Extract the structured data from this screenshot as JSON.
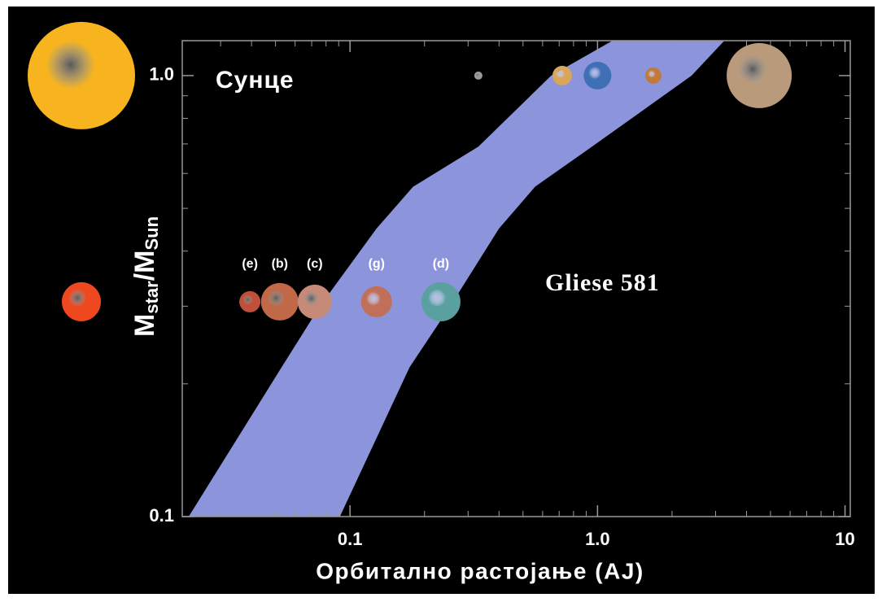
{
  "chart_data": {
    "type": "scatter",
    "xlabel": "Орбитално растојање (AJ)",
    "ylabel": [
      "M",
      "star",
      "/M",
      "Sun"
    ],
    "xscale": "log",
    "yscale": "log",
    "xlim": [
      0.021,
      10.5
    ],
    "ylim": [
      0.1,
      1.2
    ],
    "xticks": [
      0.1,
      {
        "value": 1,
        "label": "1.0"
      },
      10
    ],
    "yticks": [
      0.1,
      {
        "value": 1,
        "label": "1.0"
      }
    ],
    "xminorticks": [
      0.03,
      0.04,
      0.05,
      0.06,
      0.07,
      0.08,
      0.09,
      0.2,
      0.3,
      0.4,
      0.5,
      0.6,
      0.7,
      0.8,
      0.9,
      2,
      3,
      4,
      5,
      6,
      7,
      8,
      9
    ],
    "yminorticks": [
      0.2,
      0.3,
      0.4,
      0.5,
      0.6,
      0.7,
      0.8,
      0.9
    ],
    "habitable_zone": {
      "color": "#8c94dc",
      "mass": [
        0.1,
        0.218,
        0.3,
        0.45,
        0.56,
        0.69,
        1.0,
        1.21
      ],
      "inner": [
        0.0223,
        0.0529,
        0.0756,
        0.128,
        0.18,
        0.33,
        0.65,
        1.18
      ],
      "outer": [
        0.091,
        0.174,
        0.254,
        0.4,
        0.56,
        0.95,
        2.4,
        3.3
      ]
    },
    "systems": [
      {
        "name": "Сунце",
        "star_mass": 1,
        "star_color": "#f7b41e",
        "planets": {
          "x": [
            0.33,
            0.72,
            1.0,
            1.68,
            4.5
          ],
          "colors": [
            "#9a9a9a",
            "#d9a65a",
            "#3f6fb5",
            "#c07a3a",
            "#b99a7a"
          ]
        }
      },
      {
        "name": "Gliese 581",
        "star_mass": 0.307,
        "star_color": "#f0481e",
        "planets": {
          "x": [
            0.0394,
            0.052,
            0.072,
            0.128,
            0.233
          ],
          "labels": [
            "(e)",
            "(b)",
            "(c)",
            "(g)",
            "(d)"
          ],
          "colors": [
            "#c0503a",
            "#c06848",
            "#c58a78",
            "#c07058",
            "#5aa0a0"
          ]
        }
      }
    ]
  }
}
